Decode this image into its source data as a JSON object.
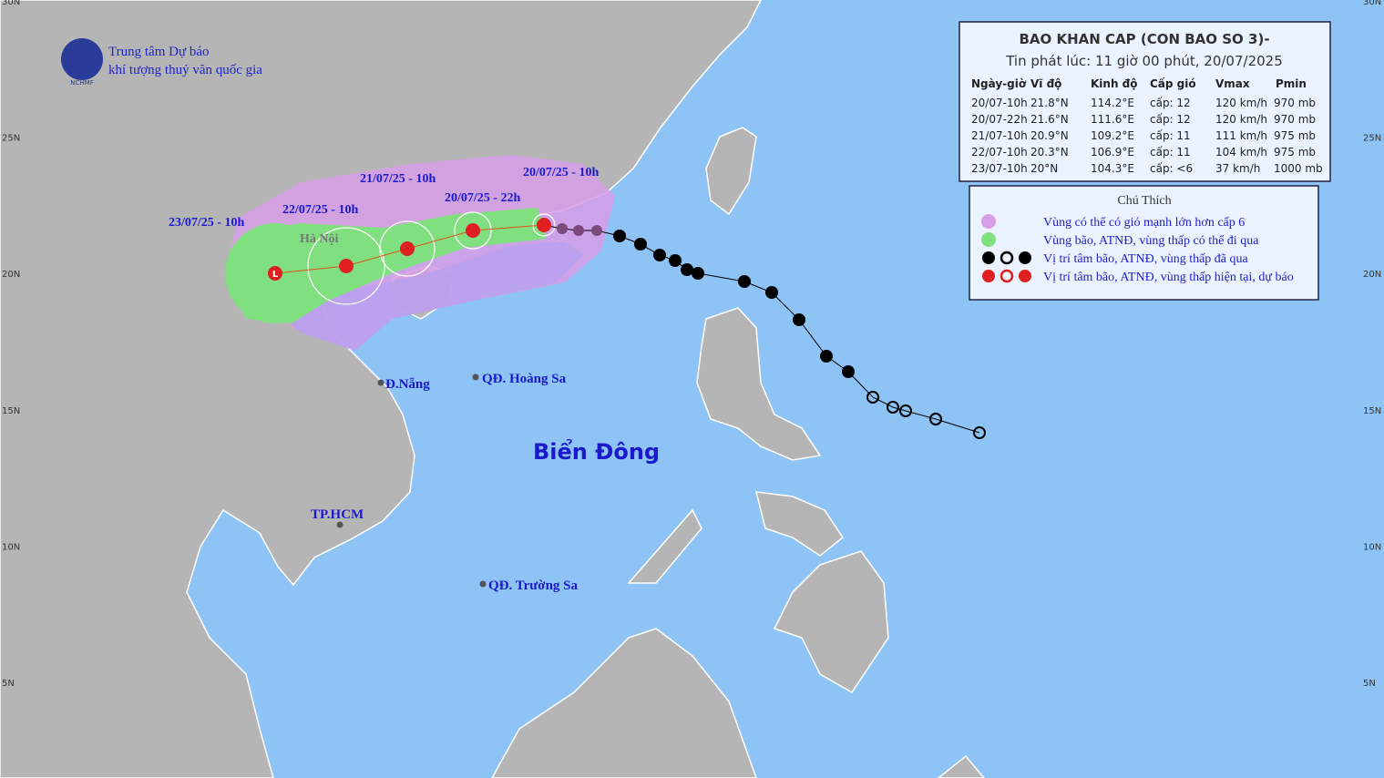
{
  "header": {
    "agency_line1": "Trung tâm Dự báo",
    "agency_line2": "khí tượng thuỷ văn quốc gia",
    "logo_text": "NCHMF"
  },
  "bulletin": {
    "title": "BAO KHAN CAP (CON BAO SO 3)-",
    "issued": "Tin phát lúc: 11 giờ 00 phút, 20/07/2025",
    "columns": [
      "Ngày-giờ",
      "Vĩ độ",
      "Kinh độ",
      "Cấp gió",
      "Vmax",
      "Pmin"
    ],
    "rows": [
      [
        "20/07-10h",
        "21.8°N",
        "114.2°E",
        "cấp: 12",
        "120 km/h",
        "970 mb"
      ],
      [
        "20/07-22h",
        "21.6°N",
        "111.6°E",
        "cấp: 12",
        "120 km/h",
        "970 mb"
      ],
      [
        "21/07-10h",
        "20.9°N",
        "109.2°E",
        "cấp: 11",
        "111 km/h",
        "975 mb"
      ],
      [
        "22/07-10h",
        "20.3°N",
        "106.9°E",
        "cấp: 11",
        "104 km/h",
        "975 mb"
      ],
      [
        "23/07-10h",
        "20°N",
        "104.3°E",
        "cấp: <6",
        "37 km/h",
        "1000 mb"
      ]
    ]
  },
  "legend": {
    "title": "Chú Thích",
    "items": [
      "Vùng có thể có gió mạnh lớn hơn cấp 6",
      "Vùng bão, ATNĐ, vùng thấp có thể đi qua",
      "Vị trí tâm bão, ATNĐ, vùng thấp đã qua",
      "Vị trí tâm bão, ATNĐ, vùng thấp hiện tại, dự báo"
    ]
  },
  "map_labels": {
    "forecast_times": [
      "20/07/25 - 10h",
      "20/07/25 - 22h",
      "21/07/25 - 10h",
      "22/07/25 - 10h",
      "23/07/25 - 10h"
    ],
    "places": [
      "Hà Nội",
      "Đ.Nẵng",
      "QĐ. Hoàng Sa",
      "Biển Đông",
      "TP.HCM",
      "QĐ. Trường Sa"
    ]
  },
  "latitude_labels": [
    "30N",
    "25N",
    "20N",
    "15N",
    "10N",
    "5N"
  ]
}
